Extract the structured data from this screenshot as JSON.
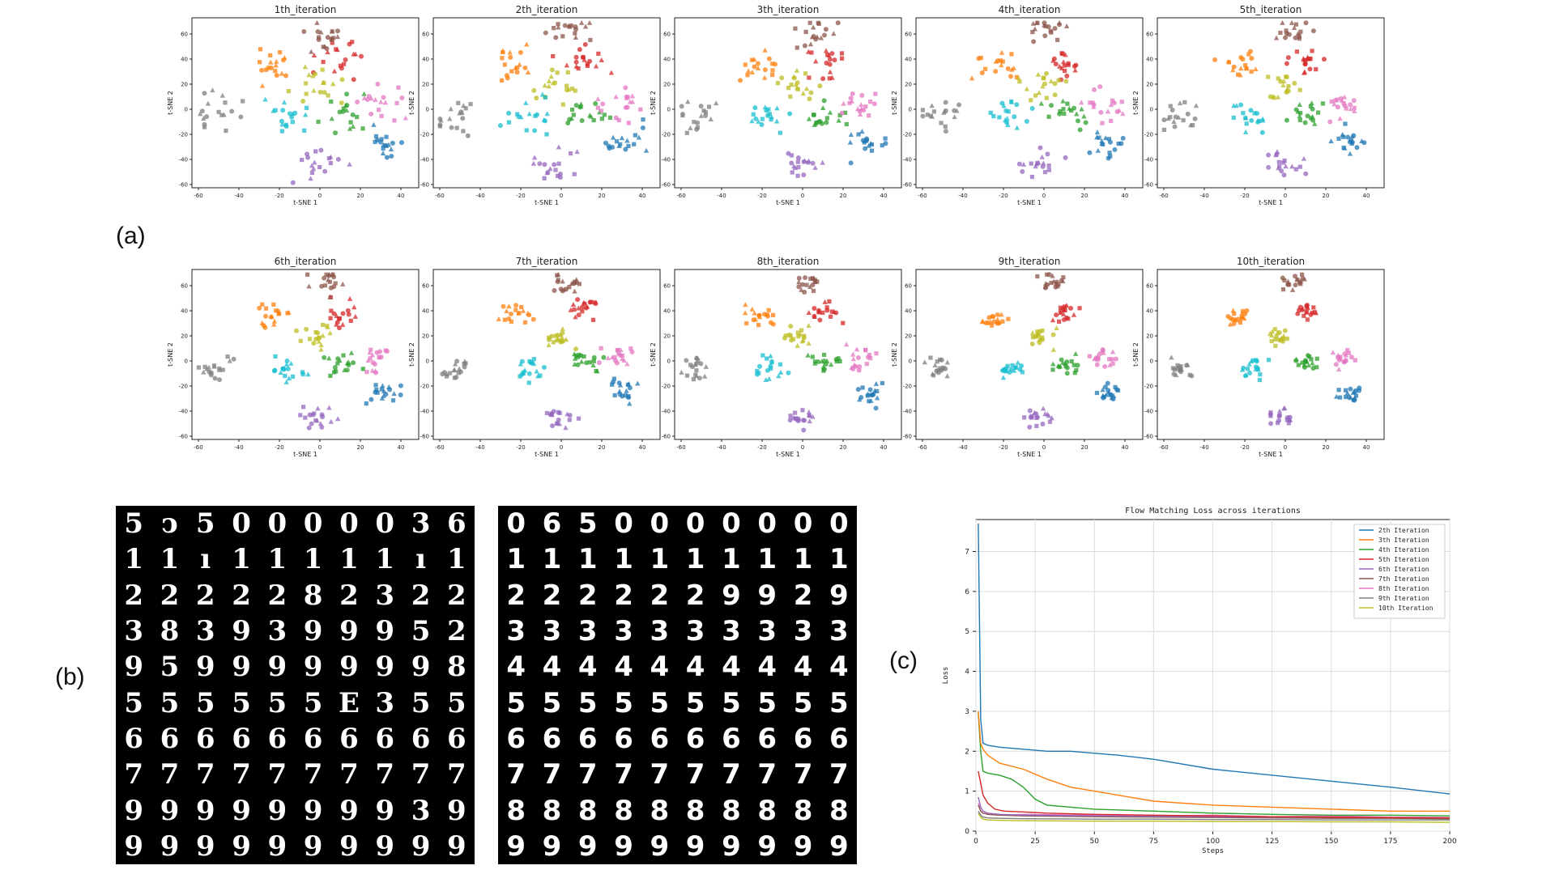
{
  "panel_labels": {
    "a": "(a)",
    "b": "(b)",
    "c": "(c)"
  },
  "tsne": {
    "titles": [
      "1th_iteration",
      "2th_iteration",
      "3th_iteration",
      "4th_iteration",
      "5th_iteration",
      "6th_iteration",
      "7th_iteration",
      "8th_iteration",
      "9th_iteration",
      "10th_iteration"
    ],
    "xlabel": "t-SNE 1",
    "ylabel": "t-SNE 2",
    "xticks": [
      "-60",
      "-40",
      "-20",
      "0",
      "20",
      "40"
    ],
    "yticks": [
      "60",
      "40",
      "20",
      "0",
      "-20",
      "-40",
      "-60"
    ],
    "cluster_colors": [
      "#1f77b4",
      "#ff7f0e",
      "#2ca02c",
      "#d62728",
      "#9467bd",
      "#8c564b",
      "#e377c2",
      "#7f7f7f",
      "#bcbd22",
      "#17becf"
    ]
  },
  "digits": {
    "left": [
      "5",
      "ↄ",
      "5",
      "0",
      "0",
      "0",
      "0",
      "0",
      "3",
      "6",
      "1",
      "1",
      "ı",
      "1",
      "1",
      "1",
      "1",
      "1",
      "ı",
      "1",
      "2",
      "2",
      "2",
      "2",
      "2",
      "8",
      "2",
      "3",
      "2",
      "2",
      "3",
      "8",
      "3",
      "9",
      "3",
      "9",
      "9",
      "9",
      "5",
      "2",
      "9",
      "5",
      "9",
      "9",
      "9",
      "9",
      "9",
      "9",
      "9",
      "8",
      "5",
      "5",
      "5",
      "5",
      "5",
      "5",
      "E",
      "3",
      "5",
      "5",
      "6",
      "6",
      "6",
      "6",
      "6",
      "6",
      "6",
      "6",
      "6",
      "6",
      "7",
      "7",
      "7",
      "7",
      "7",
      "7",
      "7",
      "7",
      "7",
      "7",
      "9",
      "9",
      "9",
      "9",
      "9",
      "9",
      "9",
      "9",
      "3",
      "9",
      "9",
      "9",
      "9",
      "9",
      "9",
      "9",
      "9",
      "9",
      "9",
      "9"
    ],
    "right": [
      "0",
      "6",
      "5",
      "0",
      "0",
      "0",
      "0",
      "0",
      "0",
      "0",
      "1",
      "1",
      "1",
      "1",
      "1",
      "1",
      "1",
      "1",
      "1",
      "1",
      "2",
      "2",
      "2",
      "2",
      "2",
      "2",
      "9",
      "9",
      "2",
      "9",
      "3",
      "3",
      "3",
      "3",
      "3",
      "3",
      "3",
      "3",
      "3",
      "3",
      "4",
      "4",
      "4",
      "4",
      "4",
      "4",
      "4",
      "4",
      "4",
      "4",
      "5",
      "5",
      "5",
      "5",
      "5",
      "5",
      "5",
      "5",
      "5",
      "5",
      "6",
      "6",
      "6",
      "6",
      "6",
      "6",
      "6",
      "6",
      "6",
      "6",
      "7",
      "7",
      "7",
      "7",
      "7",
      "7",
      "7",
      "7",
      "7",
      "7",
      "8",
      "8",
      "8",
      "8",
      "8",
      "8",
      "8",
      "8",
      "8",
      "8",
      "9",
      "9",
      "9",
      "9",
      "9",
      "9",
      "9",
      "9",
      "9",
      "9"
    ]
  },
  "chart_data": {
    "type": "line",
    "title": "Flow Matching Loss across iterations",
    "xlabel": "Steps",
    "ylabel": "Loss",
    "xlim": [
      0,
      200
    ],
    "ylim": [
      0,
      7.8
    ],
    "xticks": [
      0,
      25,
      50,
      75,
      100,
      125,
      150,
      175,
      200
    ],
    "yticks": [
      0,
      1,
      2,
      3,
      4,
      5,
      6,
      7
    ],
    "grid": true,
    "legend_position": "top-right",
    "series": [
      {
        "name": "2th Iteration",
        "color": "#1f77b4",
        "x": [
          1,
          2,
          3,
          5,
          10,
          20,
          30,
          40,
          50,
          60,
          75,
          100,
          125,
          150,
          175,
          200
        ],
        "y": [
          7.7,
          2.8,
          2.2,
          2.15,
          2.1,
          2.05,
          2.0,
          2.0,
          1.95,
          1.9,
          1.8,
          1.55,
          1.4,
          1.25,
          1.1,
          0.93
        ]
      },
      {
        "name": "3th Iteration",
        "color": "#ff7f0e",
        "x": [
          1,
          2,
          3,
          5,
          10,
          20,
          30,
          40,
          50,
          60,
          75,
          100,
          125,
          150,
          175,
          200
        ],
        "y": [
          3.0,
          2.2,
          2.05,
          1.9,
          1.7,
          1.55,
          1.3,
          1.1,
          1.0,
          0.9,
          0.75,
          0.65,
          0.6,
          0.55,
          0.5,
          0.5
        ]
      },
      {
        "name": "4th Iteration",
        "color": "#2ca02c",
        "x": [
          1,
          2,
          3,
          5,
          10,
          15,
          20,
          25,
          30,
          40,
          50,
          75,
          100,
          125,
          150,
          175,
          200
        ],
        "y": [
          2.95,
          2.0,
          1.5,
          1.45,
          1.4,
          1.3,
          1.1,
          0.8,
          0.65,
          0.6,
          0.55,
          0.5,
          0.45,
          0.42,
          0.4,
          0.4,
          0.38
        ]
      },
      {
        "name": "5th Iteration",
        "color": "#d62728",
        "x": [
          1,
          2,
          3,
          5,
          8,
          12,
          20,
          30,
          50,
          75,
          100,
          125,
          150,
          175,
          200
        ],
        "y": [
          1.5,
          1.2,
          0.9,
          0.7,
          0.55,
          0.5,
          0.48,
          0.45,
          0.42,
          0.4,
          0.38,
          0.36,
          0.35,
          0.34,
          0.33
        ]
      },
      {
        "name": "6th Iteration",
        "color": "#9467bd",
        "x": [
          1,
          2,
          3,
          5,
          10,
          20,
          50,
          75,
          100,
          125,
          150,
          175,
          200
        ],
        "y": [
          0.85,
          0.6,
          0.5,
          0.45,
          0.42,
          0.4,
          0.38,
          0.37,
          0.36,
          0.35,
          0.35,
          0.34,
          0.33
        ]
      },
      {
        "name": "7th Iteration",
        "color": "#8c564b",
        "x": [
          1,
          2,
          3,
          5,
          10,
          20,
          50,
          75,
          100,
          125,
          150,
          175,
          200
        ],
        "y": [
          0.65,
          0.5,
          0.45,
          0.42,
          0.4,
          0.38,
          0.36,
          0.35,
          0.34,
          0.33,
          0.32,
          0.32,
          0.31
        ]
      },
      {
        "name": "8th Iteration",
        "color": "#e377c2",
        "x": [
          1,
          2,
          3,
          5,
          10,
          20,
          50,
          75,
          100,
          125,
          150,
          175,
          200
        ],
        "y": [
          0.7,
          0.5,
          0.45,
          0.42,
          0.4,
          0.42,
          0.4,
          0.38,
          0.4,
          0.36,
          0.38,
          0.35,
          0.34
        ]
      },
      {
        "name": "9th Iteration",
        "color": "#7f7f7f",
        "x": [
          1,
          2,
          3,
          5,
          10,
          20,
          50,
          75,
          100,
          125,
          150,
          175,
          200
        ],
        "y": [
          0.5,
          0.4,
          0.35,
          0.33,
          0.32,
          0.31,
          0.3,
          0.3,
          0.29,
          0.29,
          0.28,
          0.28,
          0.28
        ]
      },
      {
        "name": "10th Iteration",
        "color": "#bcbd22",
        "x": [
          1,
          2,
          3,
          5,
          10,
          20,
          50,
          75,
          100,
          125,
          150,
          175,
          200
        ],
        "y": [
          0.45,
          0.35,
          0.3,
          0.28,
          0.27,
          0.26,
          0.25,
          0.25,
          0.24,
          0.24,
          0.23,
          0.23,
          0.22
        ]
      }
    ]
  }
}
